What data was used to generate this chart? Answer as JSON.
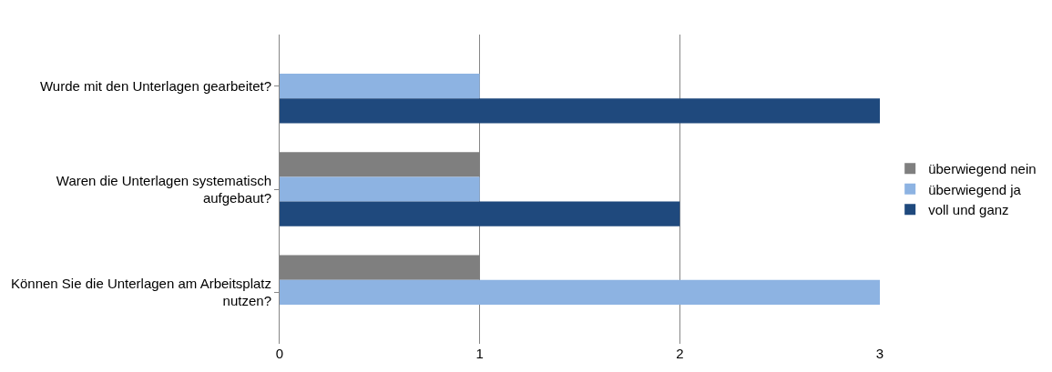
{
  "chart_data": {
    "type": "bar",
    "orientation": "horizontal",
    "categories": [
      "Wurde mit den Unterlagen gearbeitet?",
      "Waren die Unterlagen systematisch aufgebaut?",
      "Können Sie die Unterlagen am Arbeitsplatz nutzen?"
    ],
    "series": [
      {
        "name": "überwiegend nein",
        "color": "#7f7f7f",
        "values": [
          null,
          1,
          1
        ]
      },
      {
        "name": "überwiegend ja",
        "color": "#8db3e2",
        "values": [
          1,
          1,
          3
        ]
      },
      {
        "name": "voll und ganz",
        "color": "#1f497d",
        "values": [
          3,
          2,
          null
        ]
      }
    ],
    "xlim": [
      0,
      3
    ],
    "xticks": [
      0,
      1,
      2,
      3
    ],
    "grid": "x",
    "legend": "right"
  }
}
